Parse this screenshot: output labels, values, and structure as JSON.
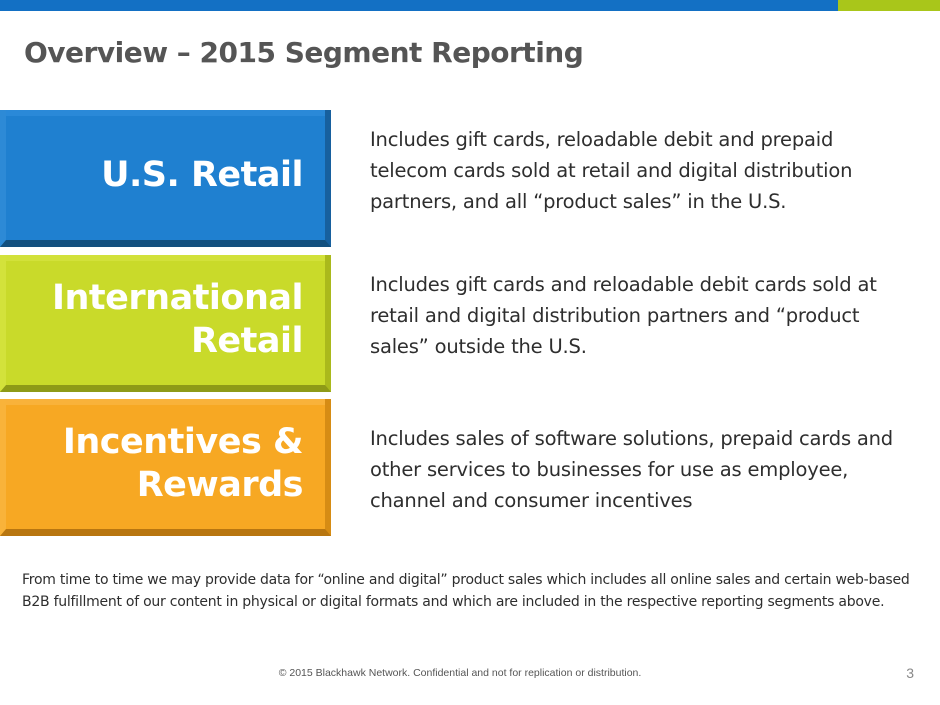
{
  "colors": {
    "topbar_blue": "#1370c4",
    "topbar_green": "#a9c61a",
    "us_retail": "#1f80d0",
    "international_retail": "#c9da2a",
    "incentives_rewards": "#f7a823",
    "title": "#555555"
  },
  "title": "Overview – 2015 Segment Reporting",
  "segments": [
    {
      "name_lines": [
        "U.S. Retail"
      ],
      "description": "Includes gift cards, reloadable debit and prepaid telecom cards sold at retail and digital distribution partners, and all “product sales” in the U.S."
    },
    {
      "name_lines": [
        "International",
        "Retail"
      ],
      "description": "Includes gift cards and reloadable debit cards sold at retail and digital distribution partners and “product sales” outside the U.S."
    },
    {
      "name_lines": [
        "Incentives &",
        "Rewards"
      ],
      "description": "Includes sales of software solutions, prepaid cards and other services to businesses for use as employee, channel and consumer incentives"
    }
  ],
  "note": "From time to time we may provide data for “online and digital” product sales which includes all online sales and certain web-based B2B fulfillment of our content in physical or digital formats and which are included in the respective reporting segments above.",
  "footer": "© 2015 Blackhawk Network. Confidential and not for replication or distribution.",
  "page_number": "3"
}
